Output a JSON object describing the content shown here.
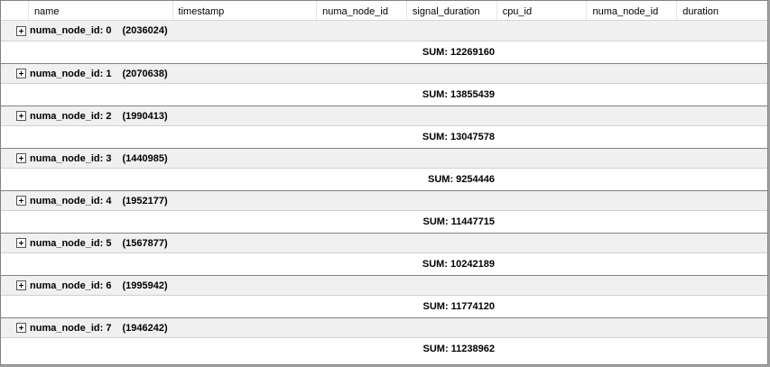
{
  "columns": [
    "name",
    "timestamp",
    "numa_node_id",
    "signal_duration",
    "cpu_id",
    "numa_node_id",
    "duration"
  ],
  "groups": [
    {
      "label": "numa_node_id: 0",
      "count": "(2036024)",
      "sum": "SUM: 12269160"
    },
    {
      "label": "numa_node_id: 1",
      "count": "(2070638)",
      "sum": "SUM: 13855439"
    },
    {
      "label": "numa_node_id: 2",
      "count": "(1990413)",
      "sum": "SUM: 13047578"
    },
    {
      "label": "numa_node_id: 3",
      "count": "(1440985)",
      "sum": "SUM: 9254446"
    },
    {
      "label": "numa_node_id: 4",
      "count": "(1952177)",
      "sum": "SUM: 11447715"
    },
    {
      "label": "numa_node_id: 5",
      "count": "(1567877)",
      "sum": "SUM: 10242189"
    },
    {
      "label": "numa_node_id: 6",
      "count": "(1995942)",
      "sum": "SUM: 11774120"
    },
    {
      "label": "numa_node_id: 7",
      "count": "(1946242)",
      "sum": "SUM: 11238962"
    }
  ]
}
